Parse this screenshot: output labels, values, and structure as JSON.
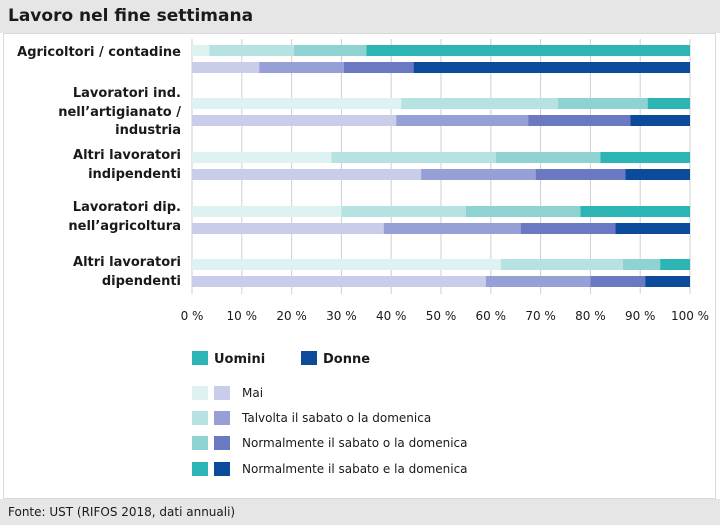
{
  "page": {
    "title": "Lavoro nel fine settimana",
    "source": "Fonte: UST (RIFOS 2018, dati annuali)"
  },
  "chart_data": {
    "type": "bar",
    "orientation": "horizontal",
    "stacked": true,
    "title": "Lavoro nel fine settimana",
    "xlim": [
      0,
      100
    ],
    "xticks": [
      "0 %",
      "10 %",
      "20 %",
      "30 %",
      "40 %",
      "50 %",
      "60 %",
      "70 %",
      "80 %",
      "90 %",
      "100 %"
    ],
    "grid": true,
    "categories": [
      [
        "Agricoltori / contadine"
      ],
      [
        "Lavoratori ind.",
        "nell’artigianato /",
        "industria"
      ],
      [
        "Altri lavoratori",
        "indipendenti"
      ],
      [
        "Lavoratori dip.",
        "nell’agricoltura"
      ],
      [
        "Altri lavoratori",
        "dipendenti"
      ]
    ],
    "segments": [
      "Mai",
      "Talvolta il sabato o la domenica",
      "Normalmente il sabato o la domenica",
      "Normalmente il sabato e la domenica"
    ],
    "groups": [
      "Uomini",
      "Donne"
    ],
    "series": [
      {
        "group": "Uomini",
        "values": [
          [
            3.5,
            17,
            14.5,
            65
          ],
          [
            42,
            31.5,
            18,
            8.5
          ],
          [
            28,
            33,
            21,
            18
          ],
          [
            30,
            25,
            23,
            22
          ],
          [
            62,
            24.5,
            7.5,
            6
          ]
        ]
      },
      {
        "group": "Donne",
        "values": [
          [
            13.5,
            17,
            14,
            55.5
          ],
          [
            41,
            26.5,
            20.5,
            12
          ],
          [
            46,
            23,
            18,
            13
          ],
          [
            38.5,
            27.5,
            19,
            15
          ],
          [
            59,
            21,
            11,
            9
          ]
        ]
      }
    ],
    "colors": {
      "Uomini": [
        "#dff2f2",
        "#b6e2e2",
        "#8fd2d2",
        "#2db5b5"
      ],
      "Donne": [
        "#c9cde9",
        "#97a0d6",
        "#6b78c2",
        "#0c4a9c"
      ]
    },
    "legend": {
      "position": "bottom",
      "group_labels": [
        "Uomini",
        "Donne"
      ],
      "entries": [
        "Mai",
        "Talvolta il sabato o la domenica",
        "Normalmente il sabato o la domenica",
        "Normalmente il sabato e la domenica"
      ]
    }
  }
}
